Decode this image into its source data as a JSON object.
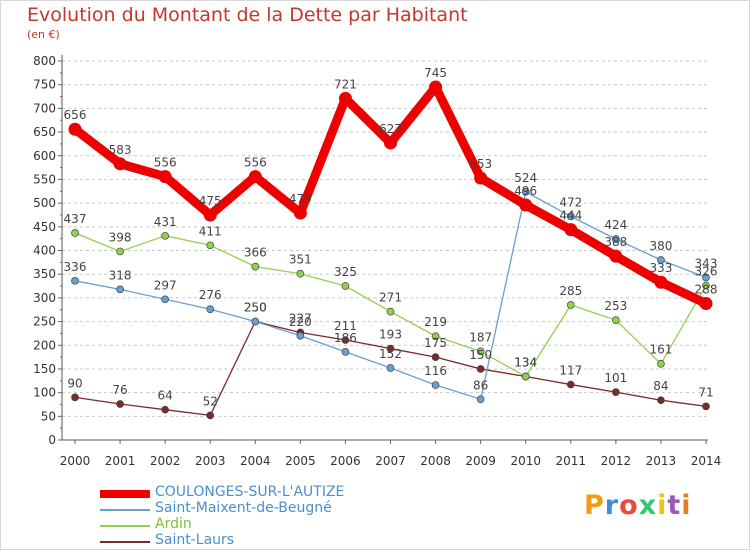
{
  "chart_data": {
    "type": "line",
    "title": "Evolution du Montant de la Dette par Habitant",
    "subtitle": "(en €)",
    "x": [
      "2000",
      "2001",
      "2002",
      "2003",
      "2004",
      "2005",
      "2006",
      "2007",
      "2008",
      "2009",
      "2010",
      "2011",
      "2012",
      "2013",
      "2014"
    ],
    "y_ticks": [
      "0",
      "50",
      "100",
      "150",
      "200",
      "250",
      "300",
      "350",
      "400",
      "450",
      "500",
      "550",
      "600",
      "650",
      "700",
      "750",
      "800"
    ],
    "ylim": [
      0,
      800
    ],
    "grid": "horizontal dashed",
    "legend_position": "bottom-left",
    "series": [
      {
        "name": "COULONGES-SUR-L'AUTIZE",
        "color": "#ee0000",
        "values": [
          656,
          583,
          556,
          475,
          556,
          479,
          721,
          627,
          745,
          553,
          496,
          444,
          388,
          333,
          288
        ]
      },
      {
        "name": "Saint-Maixent-de-Beugné",
        "color": "#6a9fd0",
        "values": [
          336,
          318,
          297,
          276,
          250,
          220,
          186,
          152,
          116,
          86,
          524,
          472,
          424,
          380,
          343
        ]
      },
      {
        "name": "Ardin",
        "color": "#92d050",
        "values": [
          437,
          398,
          431,
          411,
          366,
          351,
          325,
          271,
          219,
          187,
          134,
          285,
          253,
          161,
          326
        ]
      },
      {
        "name": "Saint-Laurs",
        "color": "#7b2a2a",
        "values": [
          90,
          76,
          64,
          52,
          250,
          227,
          211,
          193,
          175,
          150,
          134,
          117,
          101,
          84,
          71
        ]
      }
    ],
    "data_labels": [
      [
        "656",
        "583",
        "556",
        "475",
        "556",
        "479",
        "721",
        "627",
        "745",
        "553",
        "496",
        "444",
        "388",
        "333",
        "288"
      ],
      [
        "336",
        "318",
        "297",
        "276",
        "250",
        "220",
        "186",
        "152",
        "116",
        "86",
        "524",
        "472",
        "424",
        "380",
        "343"
      ],
      [
        "437",
        "398",
        "431",
        "411",
        "366",
        "351",
        "325",
        "271",
        "219",
        "187",
        "134",
        "285",
        "253",
        "161",
        "326"
      ],
      [
        "90",
        "76",
        "64",
        "52",
        "250",
        "227",
        "211",
        "193",
        "175",
        "150",
        "134",
        "117",
        "101",
        "84",
        "71"
      ]
    ]
  },
  "legend": {
    "items": [
      {
        "label": "COULONGES-SUR-L'AUTIZE",
        "color": "#ee0000"
      },
      {
        "label": "Saint-Maixent-de-Beugné",
        "color": "#6a9fd0"
      },
      {
        "label": "Ardin",
        "color": "#92d050"
      },
      {
        "label": "Saint-Laurs",
        "color": "#7b2a2a"
      }
    ]
  },
  "logo": {
    "text": "Proxiti",
    "colors": [
      "#f39c12",
      "#3a8fd8",
      "#e74c3c",
      "#2ecc71",
      "#f1c40f",
      "#9b59b6",
      "#e67e22"
    ]
  }
}
